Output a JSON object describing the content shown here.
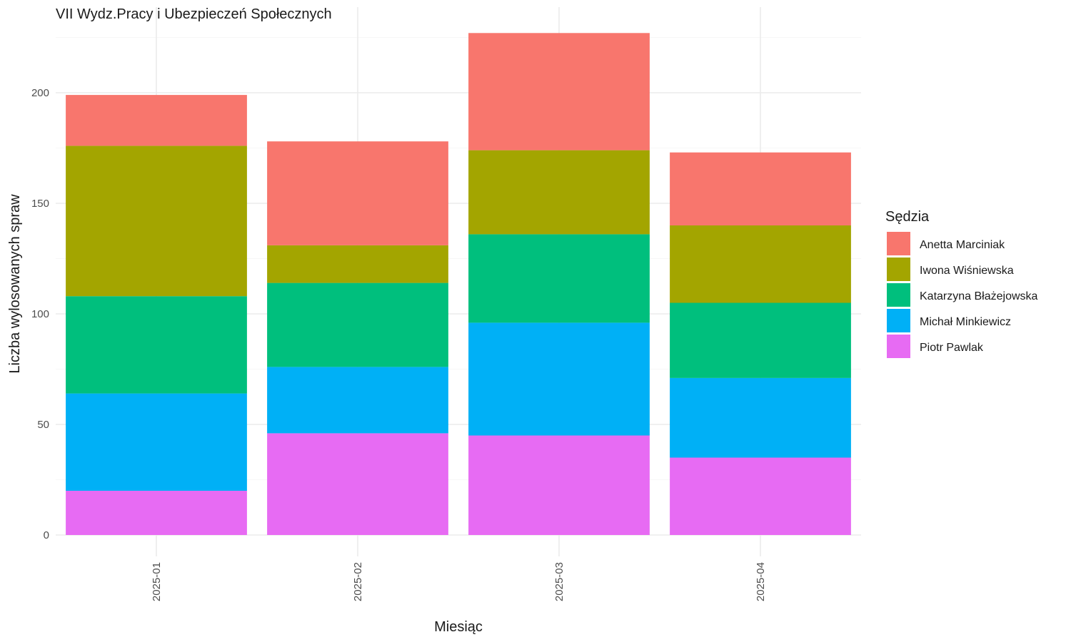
{
  "chart_data": {
    "type": "bar",
    "stacked": true,
    "title": "VII Wydz.Pracy i Ubezpieczeń Społecznych",
    "xlabel": "Miesiąc",
    "ylabel": "Liczba wylosowanych spraw",
    "categories": [
      "2025-01",
      "2025-02",
      "2025-03",
      "2025-04"
    ],
    "ylim": [
      0,
      227
    ],
    "yticks": [
      0,
      50,
      100,
      150,
      200
    ],
    "grid": true,
    "legend": {
      "title": "Sędzia",
      "position": "right"
    },
    "series": [
      {
        "name": "Piotr Pawlak",
        "color": "#E76BF3",
        "values": [
          20,
          46,
          45,
          35
        ]
      },
      {
        "name": "Michał Minkiewicz",
        "color": "#00B0F6",
        "values": [
          44,
          30,
          51,
          36
        ]
      },
      {
        "name": "Katarzyna Błażejowska",
        "color": "#00BF7D",
        "values": [
          44,
          38,
          40,
          34
        ]
      },
      {
        "name": "Iwona Wiśniewska",
        "color": "#A3A500",
        "values": [
          68,
          17,
          38,
          35
        ]
      },
      {
        "name": "Anetta Marciniak",
        "color": "#F8766D",
        "values": [
          23,
          47,
          53,
          33
        ]
      }
    ]
  }
}
